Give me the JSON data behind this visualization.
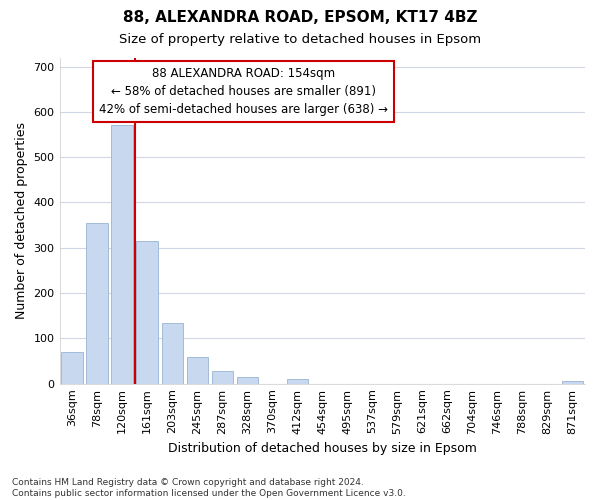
{
  "title": "88, ALEXANDRA ROAD, EPSOM, KT17 4BZ",
  "subtitle": "Size of property relative to detached houses in Epsom",
  "xlabel": "Distribution of detached houses by size in Epsom",
  "ylabel": "Number of detached properties",
  "bar_labels": [
    "36sqm",
    "78sqm",
    "120sqm",
    "161sqm",
    "203sqm",
    "245sqm",
    "287sqm",
    "328sqm",
    "370sqm",
    "412sqm",
    "454sqm",
    "495sqm",
    "537sqm",
    "579sqm",
    "621sqm",
    "662sqm",
    "704sqm",
    "746sqm",
    "788sqm",
    "829sqm",
    "871sqm"
  ],
  "bar_values": [
    70,
    355,
    570,
    315,
    135,
    58,
    28,
    15,
    0,
    10,
    0,
    0,
    0,
    0,
    0,
    0,
    0,
    0,
    0,
    0,
    5
  ],
  "bar_color": "#c8d8ee",
  "bar_edgecolor": "#9ab4d4",
  "bar_width": 0.85,
  "ylim": [
    0,
    720
  ],
  "yticks": [
    0,
    100,
    200,
    300,
    400,
    500,
    600,
    700
  ],
  "vline_color": "#cc0000",
  "annotation_text": "88 ALEXANDRA ROAD: 154sqm\n← 58% of detached houses are smaller (891)\n42% of semi-detached houses are larger (638) →",
  "annotation_box_facecolor": "#ffffff",
  "annotation_box_edgecolor": "#cc0000",
  "footnote": "Contains HM Land Registry data © Crown copyright and database right 2024.\nContains public sector information licensed under the Open Government Licence v3.0.",
  "bg_color": "#ffffff",
  "grid_color": "#d0d8e8",
  "title_fontsize": 11,
  "subtitle_fontsize": 9.5,
  "label_fontsize": 9,
  "tick_fontsize": 8,
  "annotation_fontsize": 8.5,
  "footnote_fontsize": 6.5
}
